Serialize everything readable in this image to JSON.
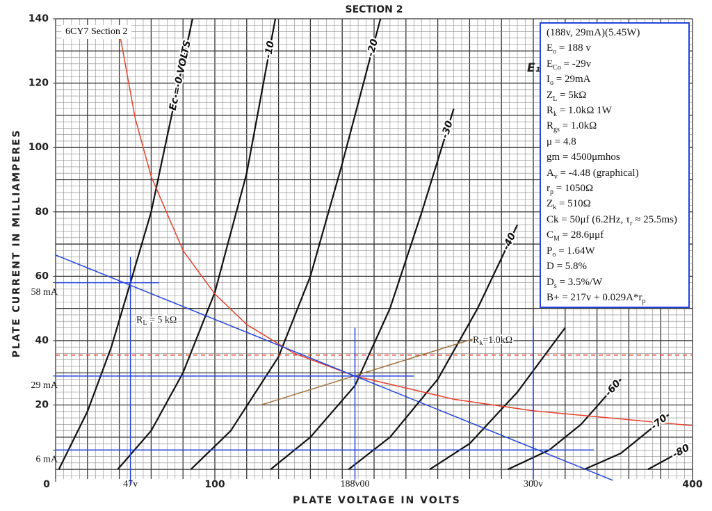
{
  "chart_data": {
    "type": "line",
    "title": "SECTION 2",
    "subtitle": "6CY7 Section 2",
    "x_label": "PLATE VOLTAGE IN VOLTS",
    "y_label": "PLATE CURRENT IN MILLIAMPERES",
    "corner_label": "E₁",
    "xlim": [
      0,
      400
    ],
    "ylim": [
      -3,
      140
    ],
    "xticks": [
      0,
      {
        "value": 47,
        "label": "47v"
      },
      100,
      {
        "value": 188,
        "label": "188v00"
      },
      {
        "value": 300,
        "label": "300v"
      },
      400
    ],
    "yticks": [
      {
        "value": 6,
        "label": "6 mA"
      },
      20,
      {
        "value": 29,
        "label": "29 mA"
      },
      40,
      {
        "value": 58,
        "label": "58 mA"
      },
      60,
      80,
      100,
      120,
      140
    ],
    "grid": {
      "x_minor": 5,
      "x_major": 20,
      "y_minor": 2,
      "y_major": 10
    },
    "series": [
      {
        "name": "Ec = 0 VOLTS",
        "color": "#111111",
        "x": [
          2,
          20,
          35,
          47,
          60,
          72,
          86
        ],
        "values": [
          0,
          18,
          38,
          58,
          80,
          108,
          140
        ]
      },
      {
        "name": "-10",
        "color": "#111111",
        "x": [
          39,
          60,
          80,
          100,
          120,
          138
        ],
        "values": [
          0,
          12,
          30,
          55,
          92,
          140
        ]
      },
      {
        "name": "-20",
        "color": "#111111",
        "x": [
          85,
          110,
          140,
          160,
          180,
          204
        ],
        "values": [
          0,
          12,
          35,
          60,
          95,
          140
        ]
      },
      {
        "name": "-30",
        "color": "#111111",
        "x": [
          135,
          160,
          188,
          210,
          230,
          250
        ],
        "values": [
          0,
          10,
          26,
          50,
          80,
          112
        ]
      },
      {
        "name": "-40",
        "color": "#111111",
        "x": [
          184,
          210,
          240,
          265,
          290
        ],
        "values": [
          0,
          10,
          28,
          50,
          76
        ]
      },
      {
        "color": "#111111",
        "x": [
          235,
          260,
          290,
          320
        ],
        "values": [
          0,
          8,
          24,
          44
        ]
      },
      {
        "name": "-60",
        "color": "#111111",
        "x": [
          284,
          310,
          330,
          355
        ],
        "values": [
          0,
          6,
          14,
          28
        ]
      },
      {
        "name": "-70",
        "color": "#111111",
        "x": [
          332,
          355,
          385
        ],
        "values": [
          0,
          5,
          17
        ]
      },
      {
        "name": "-80",
        "color": "#111111",
        "x": [
          372,
          398
        ],
        "values": [
          0,
          7
        ]
      },
      {
        "color": "#e8402a",
        "x": [
          40,
          50,
          60,
          80,
          100,
          120,
          150,
          188,
          250,
          300,
          400
        ],
        "values": [
          136,
          109,
          91,
          68,
          54.5,
          45,
          36,
          29,
          21.8,
          18.2,
          13.6
        ]
      },
      {
        "color": "#e8402a",
        "dash": true,
        "x": [
          0,
          400
        ],
        "values": [
          35.5,
          35.5
        ]
      },
      {
        "label": [
          "R",
          {
            "sub": "L"
          },
          " = 5 kΩ"
        ],
        "color": "#2244dd",
        "x": [
          0,
          350
        ],
        "values": [
          66.6,
          -3.4
        ]
      },
      {
        "label": [
          "R",
          {
            "sub": "k"
          },
          "=1.0kΩ"
        ],
        "color": "#a0703a",
        "x": [
          129,
          262
        ],
        "values": [
          20,
          40.5
        ]
      },
      {
        "color": "#2244dd",
        "x": [
          0,
          65
        ],
        "values": [
          58,
          58
        ]
      },
      {
        "color": "#2244dd",
        "x": [
          47,
          47
        ],
        "values": [
          66,
          -5
        ]
      },
      {
        "color": "#2244dd",
        "x": [
          0,
          225
        ],
        "values": [
          29,
          29
        ]
      },
      {
        "color": "#2244dd",
        "x": [
          188,
          188
        ],
        "values": [
          44,
          -3
        ]
      },
      {
        "color": "#2244dd",
        "x": [
          0,
          338
        ],
        "values": [
          6,
          6
        ]
      },
      {
        "color": "#2244dd",
        "x": [
          300,
          300
        ],
        "values": [
          44,
          -3
        ]
      }
    ]
  },
  "info_box": {
    "lines": [
      [
        "(188v, 29mA)(5.45W)"
      ],
      [
        "E",
        {
          "sub": "o"
        },
        " = 188 v"
      ],
      [
        "E",
        {
          "sub": "Co"
        },
        " = -29v"
      ],
      [
        "I",
        {
          "sub": "o"
        },
        " = 29mA"
      ],
      [
        "Z",
        {
          "sub": "L"
        },
        " = 5kΩ"
      ],
      [
        "R",
        {
          "sub": "k"
        },
        " = 1.0kΩ 1W"
      ],
      [
        "R",
        {
          "sub": "gs"
        },
        " = 1.0kΩ"
      ],
      [
        "μ = 4.8"
      ],
      [
        "gm = 4500μmhos"
      ],
      [
        "A",
        {
          "sub": "v"
        },
        " = -4.48 (graphical)"
      ],
      [
        "r",
        {
          "sub": "p"
        },
        " = 1050Ω"
      ],
      [
        "Z",
        {
          "sub": "k"
        },
        " = 510Ω"
      ],
      [
        "Ck = 50μf (6.2Hz, τ",
        {
          "sub": "r"
        },
        " ≈ 25.5ms)"
      ],
      [
        "C",
        {
          "sub": "M"
        },
        " = 28.6μμf"
      ],
      [
        "P",
        {
          "sub": "o"
        },
        " = 1.64W"
      ],
      [
        "D = 5.8%"
      ],
      [
        "D",
        {
          "sub": "s"
        },
        " = 3.5%/W"
      ],
      [
        "B+ = 217v + 0.029A*r",
        {
          "sub": "p"
        }
      ]
    ]
  }
}
